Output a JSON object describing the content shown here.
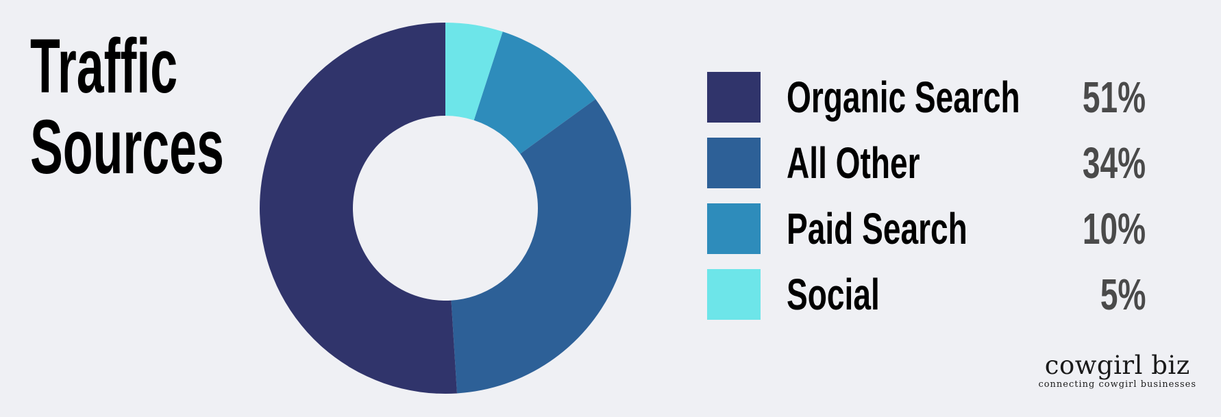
{
  "chart_data": {
    "type": "pie",
    "variant": "donut",
    "title": [
      "Traffic",
      "Sources"
    ],
    "slices": [
      {
        "label": "Organic Search",
        "value": 51,
        "display": "51%",
        "color": "#30346b"
      },
      {
        "label": "All Other",
        "value": 34,
        "display": "34%",
        "color": "#2d6097"
      },
      {
        "label": "Paid Search",
        "value": 10,
        "display": "10%",
        "color": "#2e8cbb"
      },
      {
        "label": "Social",
        "value": 5,
        "display": "5%",
        "color": "#6de5e9"
      }
    ],
    "legend_placement": "right"
  },
  "colors": {
    "background": "#eff0f4",
    "title": "#000000",
    "value_text": "#4a4a4a"
  },
  "branding": {
    "name": "cowgirl biz",
    "tagline": "connecting cowgirl businesses"
  }
}
